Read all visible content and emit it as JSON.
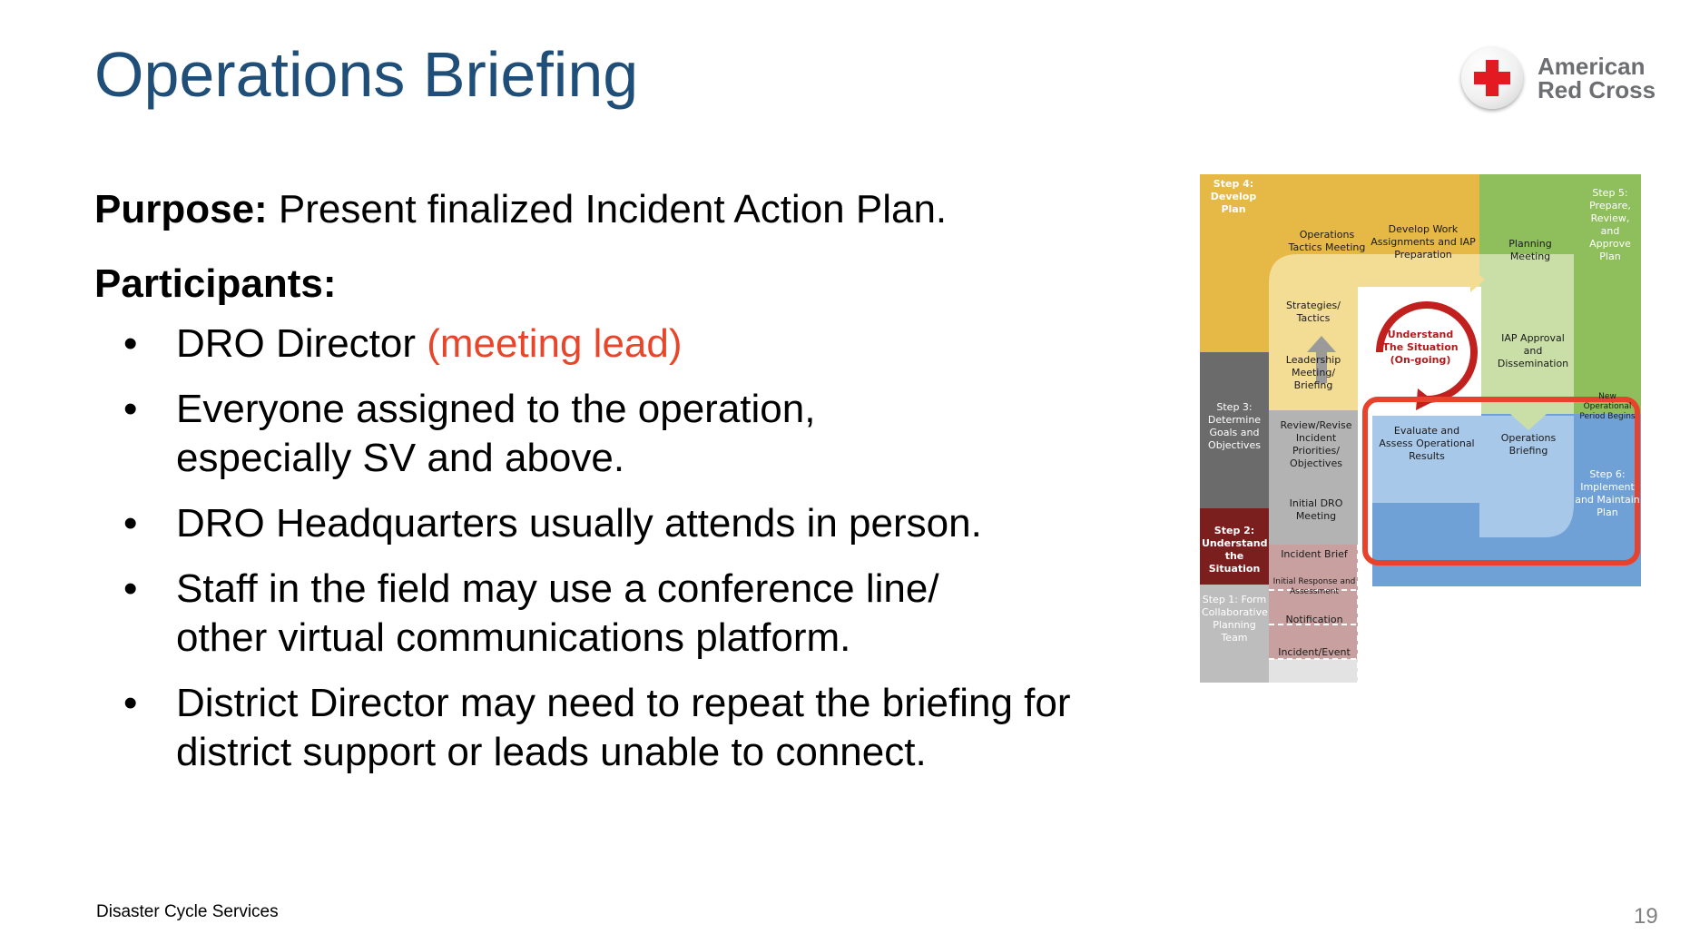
{
  "slide": {
    "title": "Operations Briefing",
    "purpose_label": "Purpose:",
    "purpose_text": " Present finalized Incident Action Plan.",
    "participants_label": "Participants:",
    "bullets": [
      {
        "text": "DRO Director ",
        "highlight": "(meeting lead)"
      },
      {
        "text": "Everyone assigned to the operation, especially SV and above."
      },
      {
        "text": "DRO Headquarters usually attends in person."
      },
      {
        "text": "Staff in the field may use a conference line/ other virtual communications platform."
      },
      {
        "text": "District Director may need to repeat the briefing for district support or leads unable to connect."
      }
    ],
    "bullet_char": "•",
    "footer": "Disaster Cycle Services",
    "page_number": "19"
  },
  "logo": {
    "line1": "American",
    "line2": "Red Cross",
    "icon": "red-cross-icon"
  },
  "colors": {
    "title": "#1f4e79",
    "highlight": "#e8462a",
    "logo_red": "#e21b23"
  },
  "diagram": {
    "step4": "Step 4: Develop Plan",
    "step5": "Step 5: Prepare, Review, and Approve Plan",
    "step3": "Step 3: Determine Goals and Objectives",
    "step2": "Step 2: Understand the Situation",
    "step1": "Step 1: Form Collaborative Planning Team",
    "step6": "Step 6: Implement and Maintain Plan",
    "ops_tactics": "Operations Tactics Meeting",
    "develop_work": "Develop Work Assignments and IAP Preparation",
    "planning_meeting": "Planning Meeting",
    "strategies": "Strategies/ Tactics",
    "leadership": "Leadership Meeting/ Briefing",
    "iap_approval": "IAP Approval and Dissemination",
    "review_revise": "Review/Revise Incident Priorities/ Objectives",
    "understand": "Understand The Situation (On-going)",
    "new_period": "New Operational Period Begins",
    "evaluate": "Evaluate and Assess Operational Results",
    "ops_briefing": "Operations Briefing",
    "initial_dro": "Initial DRO Meeting",
    "incident_brief": "Incident Brief",
    "initial_response": "Initial Response and Assessment",
    "notification": "Notification",
    "incident_event": "Incident/Event"
  }
}
